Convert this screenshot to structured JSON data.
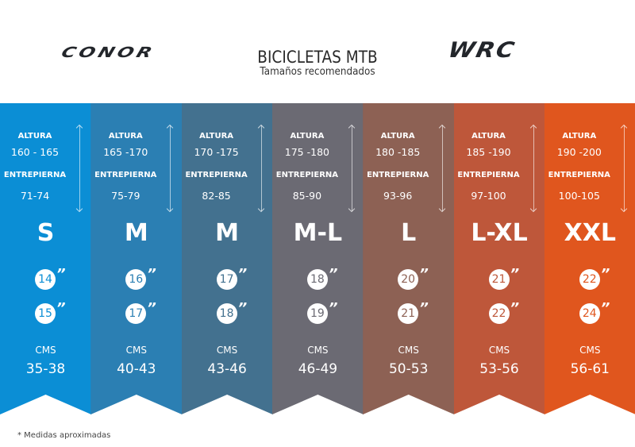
{
  "header": {
    "brand_left": "CONOR",
    "brand_right": "WRC",
    "title": "BICICLETAS MTB",
    "subtitle": "Tamaños recomendados"
  },
  "labels": {
    "height": "ALTURA",
    "inseam": "ENTREPIERNA",
    "cms": "CMS",
    "inch_mark": "”"
  },
  "sizes": [
    {
      "size": "S",
      "height": "160 - 165",
      "inseam": "71-74",
      "wheels": [
        "14",
        "15"
      ],
      "cms": "35-38",
      "color": "#0b8ed5"
    },
    {
      "size": "M",
      "height": "165 -170",
      "inseam": "75-79",
      "wheels": [
        "16",
        "17"
      ],
      "cms": "40-43",
      "color": "#2b7fb3"
    },
    {
      "size": "M",
      "height": "170 -175",
      "inseam": "82-85",
      "wheels": [
        "17",
        "18"
      ],
      "cms": "43-46",
      "color": "#43718f"
    },
    {
      "size": "M-L",
      "height": "175 -180",
      "inseam": "85-90",
      "wheels": [
        "18",
        "19"
      ],
      "cms": "46-49",
      "color": "#6b6a73"
    },
    {
      "size": "L",
      "height": "180 -185",
      "inseam": "93-96",
      "wheels": [
        "20",
        "21"
      ],
      "cms": "50-53",
      "color": "#8d6154"
    },
    {
      "size": "L-XL",
      "height": "185 -190",
      "inseam": "97-100",
      "wheels": [
        "21",
        "22"
      ],
      "cms": "53-56",
      "color": "#be573a"
    },
    {
      "size": "XXL",
      "height": "190 -200",
      "inseam": "100-105",
      "wheels": [
        "22",
        "24"
      ],
      "cms": "56-61",
      "color": "#e0561e"
    }
  ],
  "footnote": "* Medidas aproximadas"
}
